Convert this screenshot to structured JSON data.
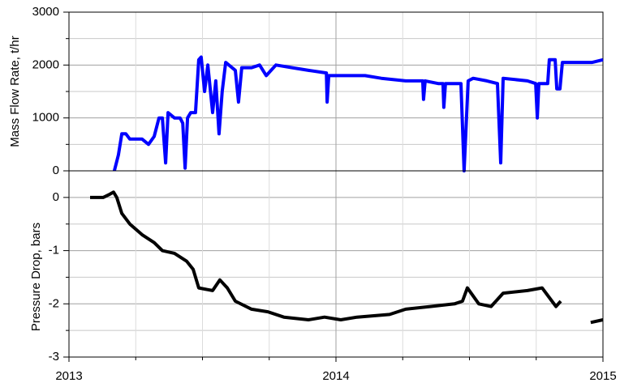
{
  "chart_data": [
    {
      "type": "line",
      "ylabel": "Mass Flow Rate, t/hr",
      "xlim": [
        2013,
        2015
      ],
      "ylim": [
        0,
        3000
      ],
      "yticks": [
        0,
        1000,
        2000,
        3000
      ],
      "grid": true,
      "x": [
        2013.17,
        2013.185,
        2013.198,
        2013.213,
        2013.228,
        2013.274,
        2013.298,
        2013.319,
        2013.337,
        2013.35,
        2013.362,
        2013.371,
        2013.395,
        2013.416,
        2013.426,
        2013.435,
        2013.444,
        2013.456,
        2013.474,
        2013.486,
        2013.495,
        2013.508,
        2013.52,
        2013.538,
        2013.55,
        2013.562,
        2013.574,
        2013.587,
        2013.623,
        2013.635,
        2013.647,
        2013.684,
        2013.714,
        2013.739,
        2013.775,
        2013.836,
        2013.897,
        2013.964,
        2013.967,
        2013.973,
        2014.049,
        2014.109,
        2014.17,
        2014.261,
        2014.325,
        2014.328,
        2014.334,
        2014.383,
        2014.401,
        2014.404,
        2014.41,
        2014.468,
        2014.48,
        2014.495,
        2014.514,
        2014.565,
        2014.605,
        2014.617,
        2014.626,
        2014.717,
        2014.748,
        2014.754,
        2014.76,
        2014.793,
        2014.799,
        2014.821,
        2014.827,
        2014.839,
        2014.848,
        2014.9,
        2014.96,
        2015.0
      ],
      "series": [
        {
          "color": "#0000ff",
          "values": [
            0,
            300,
            700,
            700,
            600,
            600,
            500,
            650,
            1000,
            1000,
            150,
            1100,
            1000,
            1000,
            900,
            50,
            1000,
            1100,
            1100,
            2100,
            2150,
            1500,
            2000,
            1100,
            1700,
            700,
            1500,
            2050,
            1900,
            1300,
            1950,
            1950,
            2000,
            1800,
            2000,
            1950,
            1900,
            1850,
            1300,
            1800,
            1800,
            1800,
            1750,
            1700,
            1700,
            1350,
            1700,
            1650,
            1650,
            1200,
            1650,
            1650,
            0,
            1700,
            1750,
            1700,
            1650,
            150,
            1750,
            1700,
            1650,
            1000,
            1650,
            1650,
            2100,
            2100,
            1550,
            1550,
            2050,
            2050,
            2050,
            2100
          ]
        }
      ]
    },
    {
      "type": "line",
      "ylabel": "Pressure Drop, bars",
      "xlim": [
        2013,
        2015
      ],
      "xticks": [
        2013,
        2014,
        2015
      ],
      "ylim": [
        -3,
        0.5
      ],
      "yticks": [
        -3,
        -2,
        -1,
        0
      ],
      "grid": true,
      "x": [
        2013.079,
        2013.128,
        2013.149,
        2013.167,
        2013.179,
        2013.198,
        2013.228,
        2013.274,
        2013.319,
        2013.35,
        2013.395,
        2013.441,
        2013.465,
        2013.486,
        2013.538,
        2013.565,
        2013.593,
        2013.623,
        2013.684,
        2013.745,
        2013.805,
        2013.897,
        2013.957,
        2014.018,
        2014.079,
        2014.201,
        2014.261,
        2014.353,
        2014.444,
        2014.474,
        2014.492,
        2014.535,
        2014.581,
        2014.626,
        2014.717,
        2014.772,
        2014.809,
        2014.824,
        2014.842,
        2014.9,
        2014.954,
        2015.0
      ],
      "series": [
        {
          "color": "#000000",
          "values": [
            0,
            0,
            0.05,
            0.1,
            0,
            -0.3,
            -0.5,
            -0.7,
            -0.85,
            -1.0,
            -1.05,
            -1.2,
            -1.35,
            -1.7,
            -1.75,
            -1.55,
            -1.7,
            -1.95,
            -2.1,
            -2.15,
            -2.25,
            -2.3,
            -2.25,
            -2.3,
            -2.25,
            -2.2,
            -2.1,
            -2.05,
            -2.0,
            -1.95,
            -1.7,
            -2.0,
            -2.05,
            -1.8,
            -1.75,
            -1.7,
            -1.95,
            -2.05,
            -1.95,
            null,
            -2.35,
            -2.3
          ]
        }
      ]
    }
  ]
}
